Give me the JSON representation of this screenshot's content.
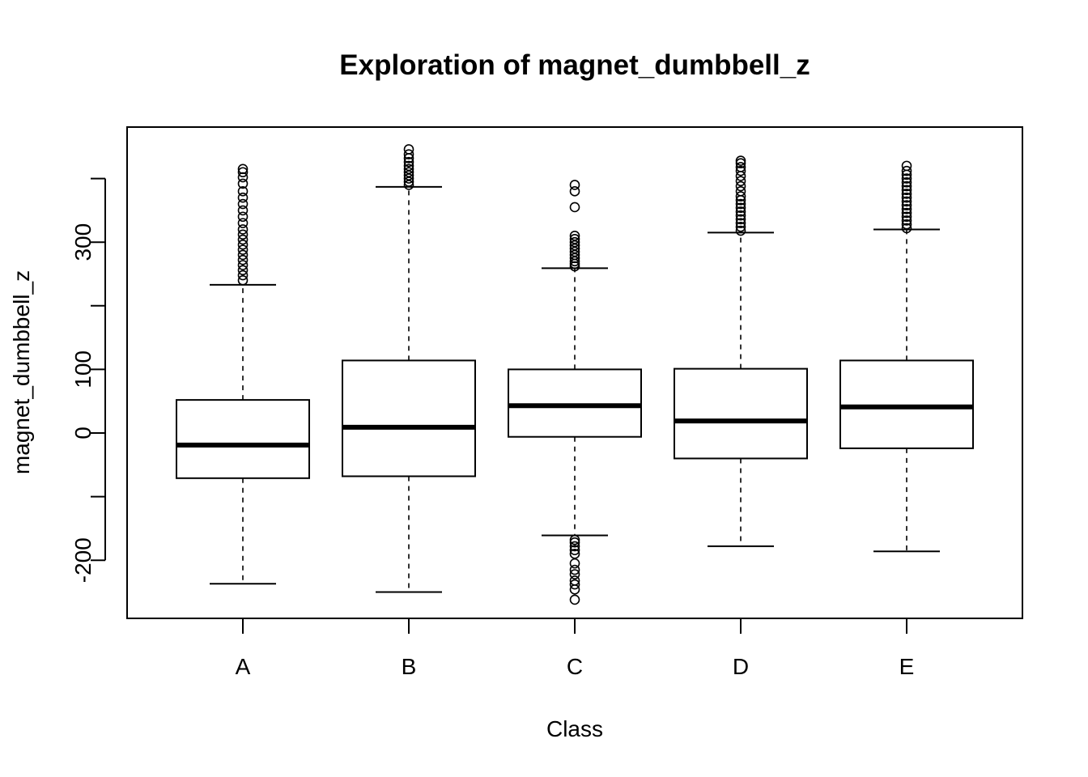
{
  "chart_data": {
    "type": "boxplot",
    "title": "Exploration of  magnet_dumbbell_z",
    "xlabel": "Class",
    "ylabel": "magnet_dumbbell_z",
    "ylim": [
      -290,
      480
    ],
    "y_ticks": [
      -200,
      -100,
      0,
      100,
      200,
      300,
      400
    ],
    "y_tick_labels": [
      "-200",
      "",
      "0",
      "100",
      "",
      "300",
      ""
    ],
    "categories": [
      "A",
      "B",
      "C",
      "D",
      "E"
    ],
    "grid": false,
    "legend": "none",
    "boxes": [
      {
        "name": "A",
        "min": -237,
        "q1": -71,
        "median": -19,
        "q3": 52,
        "max": 233,
        "outliers": [
          240,
          248,
          256,
          264,
          272,
          280,
          288,
          296,
          304,
          312,
          320,
          330,
          340,
          350,
          360,
          370,
          380,
          392,
          402,
          410,
          415
        ]
      },
      {
        "name": "B",
        "min": -250,
        "q1": -68,
        "median": 9,
        "q3": 114,
        "max": 387,
        "outliers": [
          390,
          395,
          400,
          405,
          410,
          415,
          420,
          426,
          432,
          438,
          446
        ]
      },
      {
        "name": "C",
        "min": -161,
        "q1": -6,
        "median": 43,
        "q3": 100,
        "max": 259,
        "outliers": [
          262,
          266,
          270,
          275,
          280,
          285,
          290,
          295,
          300,
          305,
          310,
          355,
          380,
          390,
          -168,
          -172,
          -178,
          -184,
          -190,
          -205,
          -215,
          -222,
          -232,
          -238,
          -246,
          -262
        ]
      },
      {
        "name": "D",
        "min": -178,
        "q1": -40,
        "median": 19,
        "q3": 101,
        "max": 315,
        "outliers": [
          318,
          324,
          330,
          336,
          342,
          348,
          354,
          360,
          366,
          372,
          380,
          388,
          396,
          404,
          412,
          418,
          424,
          428
        ]
      },
      {
        "name": "E",
        "min": -186,
        "q1": -24,
        "median": 41,
        "q3": 114,
        "max": 320,
        "outliers": [
          322,
          328,
          334,
          340,
          346,
          352,
          358,
          364,
          370,
          376,
          382,
          388,
          394,
          400,
          406,
          412,
          420
        ]
      }
    ]
  }
}
